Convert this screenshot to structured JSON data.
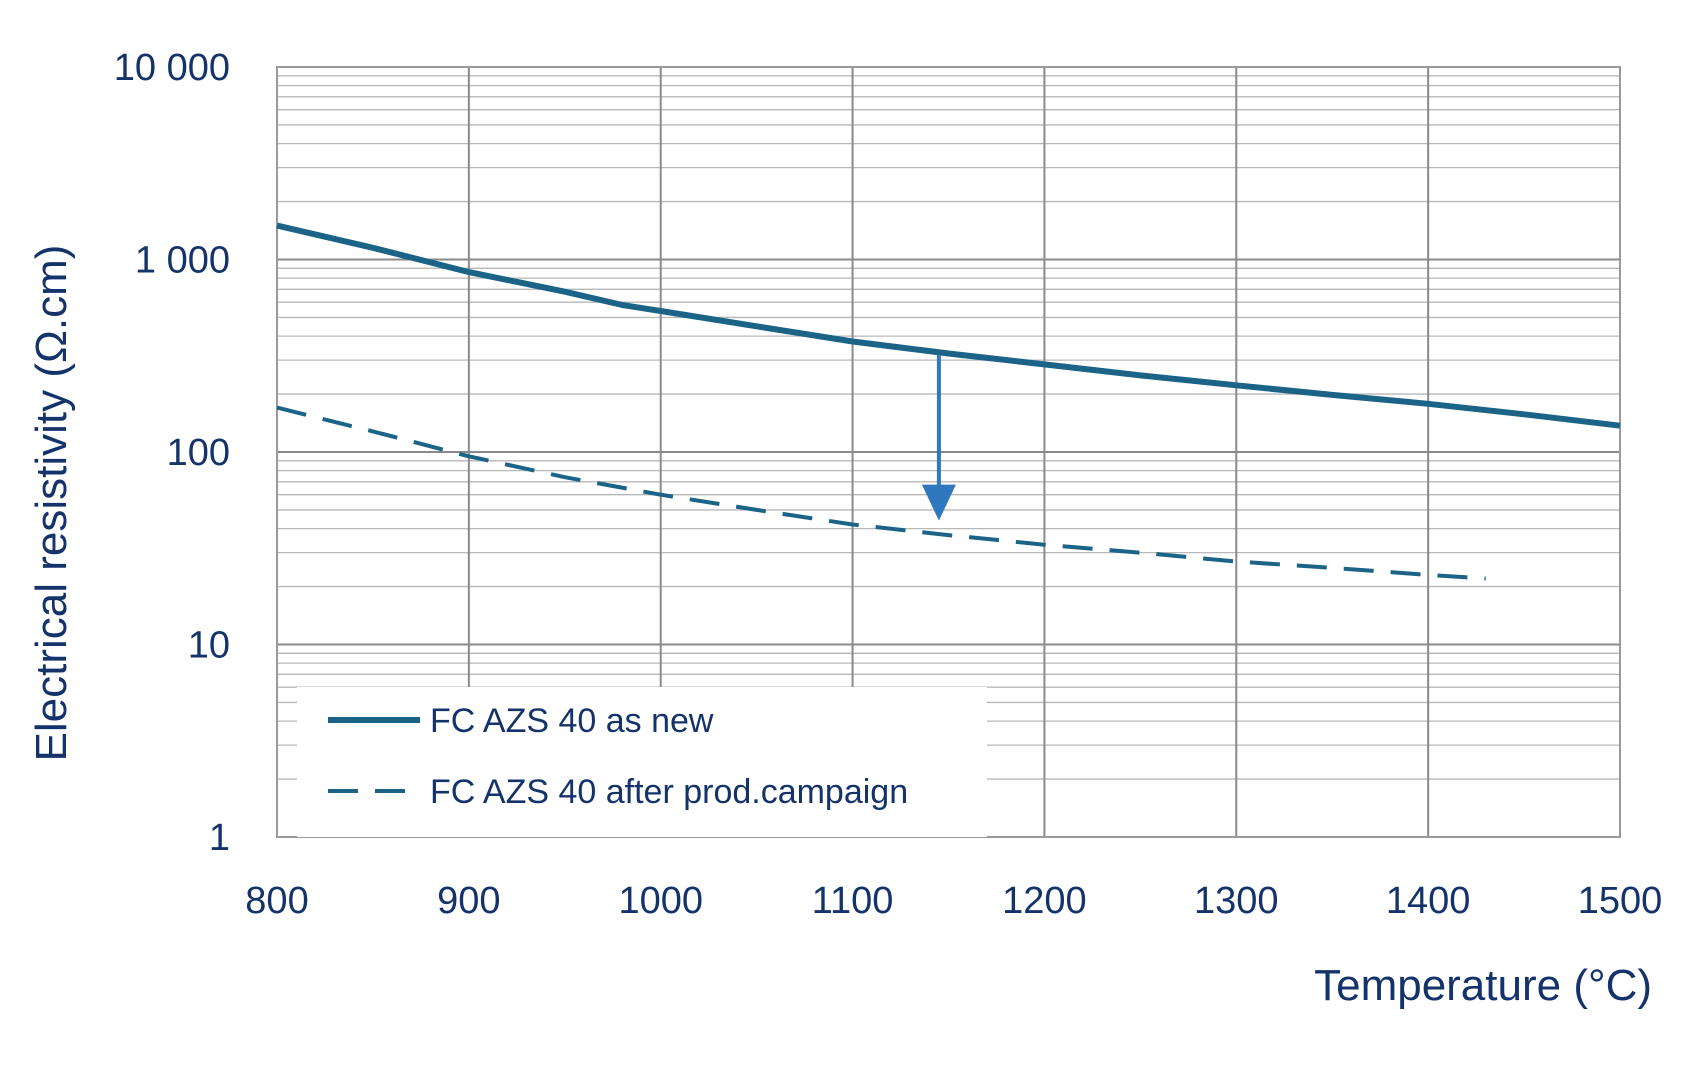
{
  "chart_data": {
    "type": "line",
    "xlabel": "Temperature (°C)",
    "ylabel": "Electrical resistivity (Ω.cm)",
    "xlim": [
      800,
      1500
    ],
    "ylim": [
      1,
      10000
    ],
    "y_scale": "log",
    "x_ticks": [
      800,
      900,
      1000,
      1100,
      1200,
      1300,
      1400,
      1500
    ],
    "x_tick_labels": [
      "800",
      "900",
      "1000",
      "1100",
      "1200",
      "1300",
      "1400",
      "1500"
    ],
    "y_ticks": [
      1,
      10,
      100,
      1000,
      10000
    ],
    "y_tick_labels": [
      "1",
      "10",
      "100",
      "1 000",
      "10 000"
    ],
    "grid": true,
    "legend_position": "bottom-left",
    "series": [
      {
        "name": "FC AZS 40 as new",
        "style": "solid",
        "color": "#1b6387",
        "x": [
          800,
          850,
          900,
          950,
          980,
          1000,
          1050,
          1100,
          1150,
          1200,
          1250,
          1300,
          1350,
          1400,
          1450,
          1500
        ],
        "y": [
          1500,
          1150,
          860,
          680,
          580,
          540,
          450,
          375,
          325,
          285,
          250,
          222,
          198,
          178,
          157,
          137
        ]
      },
      {
        "name": "FC AZS 40 after prod.campaign",
        "style": "dashed",
        "color": "#1b6387",
        "x": [
          800,
          850,
          900,
          950,
          1000,
          1050,
          1100,
          1150,
          1200,
          1250,
          1300,
          1350,
          1400,
          1430
        ],
        "y": [
          170,
          128,
          95,
          74,
          60,
          50,
          42,
          37,
          33,
          30,
          27,
          25,
          23,
          22
        ]
      }
    ],
    "annotations": [
      {
        "type": "arrow",
        "color": "#2f78be",
        "x": 1145,
        "y_from": 320,
        "y_to": 44
      }
    ]
  }
}
